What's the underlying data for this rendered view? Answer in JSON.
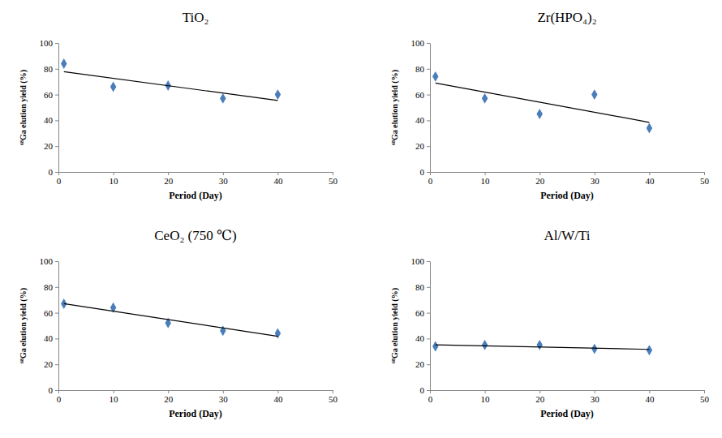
{
  "chart_data": [
    {
      "type": "scatter",
      "title": "TiO₂",
      "x_label": "Period (Day)",
      "y_label": "⁶⁸Ga elution yield (%)",
      "xlim": [
        0,
        50
      ],
      "xticks": [
        0,
        10,
        20,
        30,
        40,
        50
      ],
      "ylim": [
        0,
        100
      ],
      "yticks": [
        0,
        20,
        40,
        60,
        80,
        100
      ],
      "grid": false,
      "series": [
        {
          "type": "scatter",
          "marker": "diamond",
          "color": "#4a7ebb",
          "x": [
            1,
            10,
            20,
            30,
            40
          ],
          "values": [
            84,
            66,
            67,
            57,
            60
          ]
        },
        {
          "type": "line",
          "line_style": "solid",
          "color": "#000000",
          "x": [
            1,
            40
          ],
          "values": [
            77.8,
            55.4
          ]
        }
      ]
    },
    {
      "type": "scatter",
      "title": "Zr(HPO₄)₂",
      "x_label": "Period (Day)",
      "y_label": "⁶⁸Ga elution yield (%)",
      "xlim": [
        0,
        50
      ],
      "xticks": [
        0,
        10,
        20,
        30,
        40,
        50
      ],
      "ylim": [
        0,
        100
      ],
      "yticks": [
        0,
        20,
        40,
        60,
        80,
        100
      ],
      "grid": false,
      "series": [
        {
          "type": "scatter",
          "marker": "diamond",
          "color": "#4a7ebb",
          "x": [
            1,
            10,
            20,
            30,
            40
          ],
          "values": [
            74,
            57,
            45,
            60,
            34
          ]
        },
        {
          "type": "line",
          "line_style": "solid",
          "color": "#000000",
          "x": [
            1,
            40
          ],
          "values": [
            69.0,
            38.5
          ]
        }
      ]
    },
    {
      "type": "scatter",
      "title": "CeO₂ (750 ℃)",
      "x_label": "Period (Day)",
      "y_label": "⁶⁸Ga elution yield (%)",
      "xlim": [
        0,
        50
      ],
      "xticks": [
        0,
        10,
        20,
        30,
        40,
        50
      ],
      "ylim": [
        0,
        100
      ],
      "yticks": [
        0,
        20,
        40,
        60,
        80,
        100
      ],
      "grid": false,
      "series": [
        {
          "type": "scatter",
          "marker": "diamond",
          "color": "#4a7ebb",
          "x": [
            1,
            10,
            20,
            30,
            40
          ],
          "values": [
            67,
            64,
            52,
            46,
            44
          ]
        },
        {
          "type": "line",
          "line_style": "solid",
          "color": "#000000",
          "x": [
            1,
            40
          ],
          "values": [
            67.1,
            41.7
          ]
        }
      ]
    },
    {
      "type": "scatter",
      "title": "Al/W/Ti",
      "x_label": "Period (Day)",
      "y_label": "⁶⁸Ga elution yield (%)",
      "xlim": [
        0,
        50
      ],
      "xticks": [
        0,
        10,
        20,
        30,
        40,
        50
      ],
      "ylim": [
        0,
        100
      ],
      "yticks": [
        0,
        20,
        40,
        60,
        80,
        100
      ],
      "grid": false,
      "series": [
        {
          "type": "scatter",
          "marker": "diamond",
          "color": "#4a7ebb",
          "x": [
            1,
            10,
            20,
            30,
            40
          ],
          "values": [
            34,
            35,
            35,
            32,
            31
          ]
        },
        {
          "type": "line",
          "line_style": "solid",
          "color": "#000000",
          "x": [
            1,
            40
          ],
          "values": [
            35.2,
            31.6
          ]
        }
      ]
    }
  ]
}
